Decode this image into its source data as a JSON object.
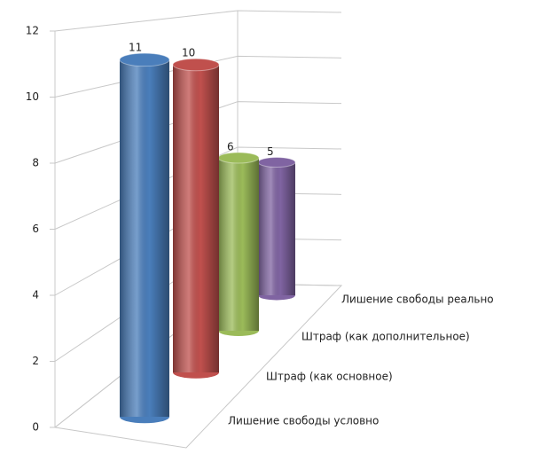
{
  "chart_data": {
    "type": "bar3d",
    "categories": [
      "Лишение свободы условно",
      "Штраф (как основное)",
      "Штраф (как дополнительное)",
      "Лишение свободы реально"
    ],
    "values": [
      11,
      10,
      6,
      5
    ],
    "colors": [
      "#4a7ebb",
      "#c0504d",
      "#9bbb59",
      "#8064a2"
    ],
    "ylim": [
      0,
      12
    ],
    "yticks": [
      0,
      2,
      4,
      6,
      8,
      10,
      12
    ],
    "grid": true
  }
}
